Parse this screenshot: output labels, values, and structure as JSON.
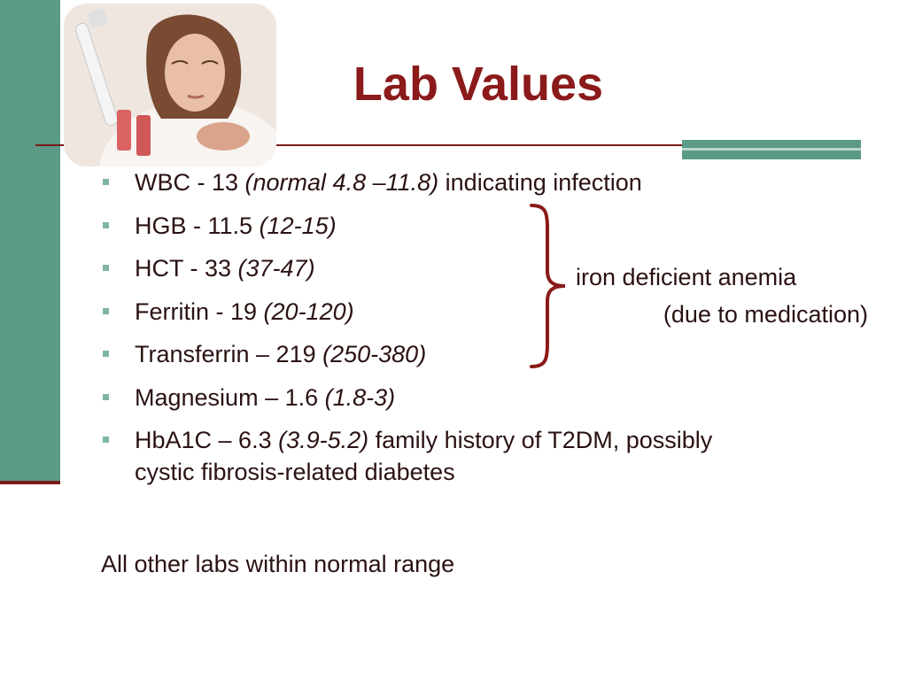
{
  "slide": {
    "title": "Lab Values",
    "labs": [
      {
        "name": "WBC - 13 ",
        "range": "(normal 4.8 –11.8)",
        "suffix": " indicating infection"
      },
      {
        "name": "HGB - 11.5 ",
        "range": "(12-15)",
        "suffix": ""
      },
      {
        "name": "HCT - 33 ",
        "range": "(37-47)",
        "suffix": ""
      },
      {
        "name": "Ferritin - 19 ",
        "range": "(20-120)",
        "suffix": ""
      },
      {
        "name": "Transferrin – 219 ",
        "range": "(250-380)",
        "suffix": ""
      },
      {
        "name": "Magnesium – 1.6 ",
        "range": "(1.8-3)",
        "suffix": ""
      },
      {
        "name": "HbA1C – 6.3 ",
        "range": "(3.9-5.2)",
        "suffix": " family history of T2DM, possibly cystic fibrosis-related diabetes"
      }
    ],
    "brace_note_line1": "iron deficient anemia",
    "brace_note_line2": "(due to medication)",
    "footer": "All other labs within normal range"
  },
  "colors": {
    "title": "#8b1a1a",
    "accent_bar": "#5a9a86",
    "rule": "#7a1a1a",
    "bullet": "#7fb5a6"
  },
  "icons": {
    "photo": "lab-technician-with-pipette-photo",
    "bullet": "square-bullet-icon",
    "brace": "right-curly-brace-icon"
  }
}
